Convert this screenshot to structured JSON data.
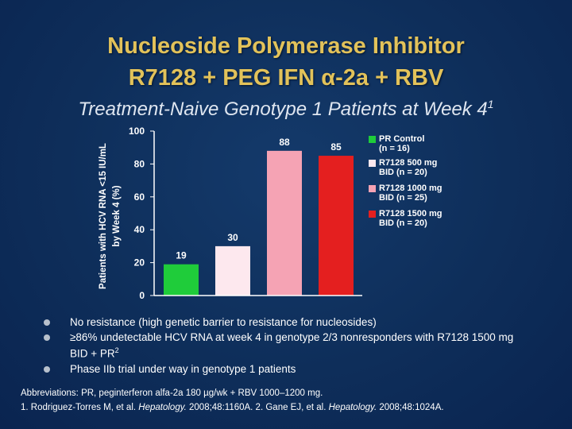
{
  "slide": {
    "title_line1": "Nucleoside Polymerase Inhibitor",
    "title_line2": "R7128 + PEG IFN α-2a + RBV",
    "subtitle": "Treatment-Naive Genotype 1 Patients at Week 4",
    "subtitle_sup": "1"
  },
  "chart_data": {
    "type": "bar",
    "categories": [
      "PR Control (n = 16)",
      "R7128 500 mg BID (n = 20)",
      "R7128 1000 mg BID (n = 25)",
      "R7128 1500 mg BID (n = 20)"
    ],
    "values": [
      19,
      30,
      88,
      85
    ],
    "data_labels": [
      "19",
      "30",
      "88",
      "85"
    ],
    "colors": [
      "#1fcc3a",
      "#fde8ee",
      "#f5a3b4",
      "#e41f1f"
    ],
    "ylabel_line1": "Patients with HCV RNA <15 IU/mL",
    "ylabel_line2": "by Week 4 (%)",
    "ylim": [
      0,
      100
    ],
    "yticks": [
      0,
      20,
      40,
      60,
      80,
      100
    ],
    "legend_position": "right",
    "legend": [
      {
        "line1": "PR Control",
        "line2": "(n = 16)"
      },
      {
        "line1": "R7128 500 mg",
        "line2": "BID (n = 20)"
      },
      {
        "line1": "R7128 1000 mg",
        "line2": "BID (n = 25)"
      },
      {
        "line1": "R7128 1500 mg",
        "line2": "BID (n = 20)"
      }
    ]
  },
  "bullets": [
    {
      "text": "No resistance (high genetic barrier to resistance for nucleosides)",
      "sup": ""
    },
    {
      "text": "≥86% undetectable HCV RNA at week 4 in genotype 2/3 nonresponders with R7128 1500 mg BID + PR",
      "sup": "2"
    },
    {
      "text": "Phase IIb trial under way in genotype 1 patients",
      "sup": ""
    }
  ],
  "footer": {
    "abbreviations": "Abbreviations: PR, peginterferon alfa-2a 180 µg/wk + RBV 1000–1200 mg.",
    "ref1_pre": "1. Rodriguez-Torres M, et al. ",
    "ref1_journal": "Hepatology.",
    "ref1_post": " 2008;48:1160A. 2. Gane EJ, et al. ",
    "ref2_journal": "Hepatology.",
    "ref2_post": " 2008;48:1024A."
  }
}
